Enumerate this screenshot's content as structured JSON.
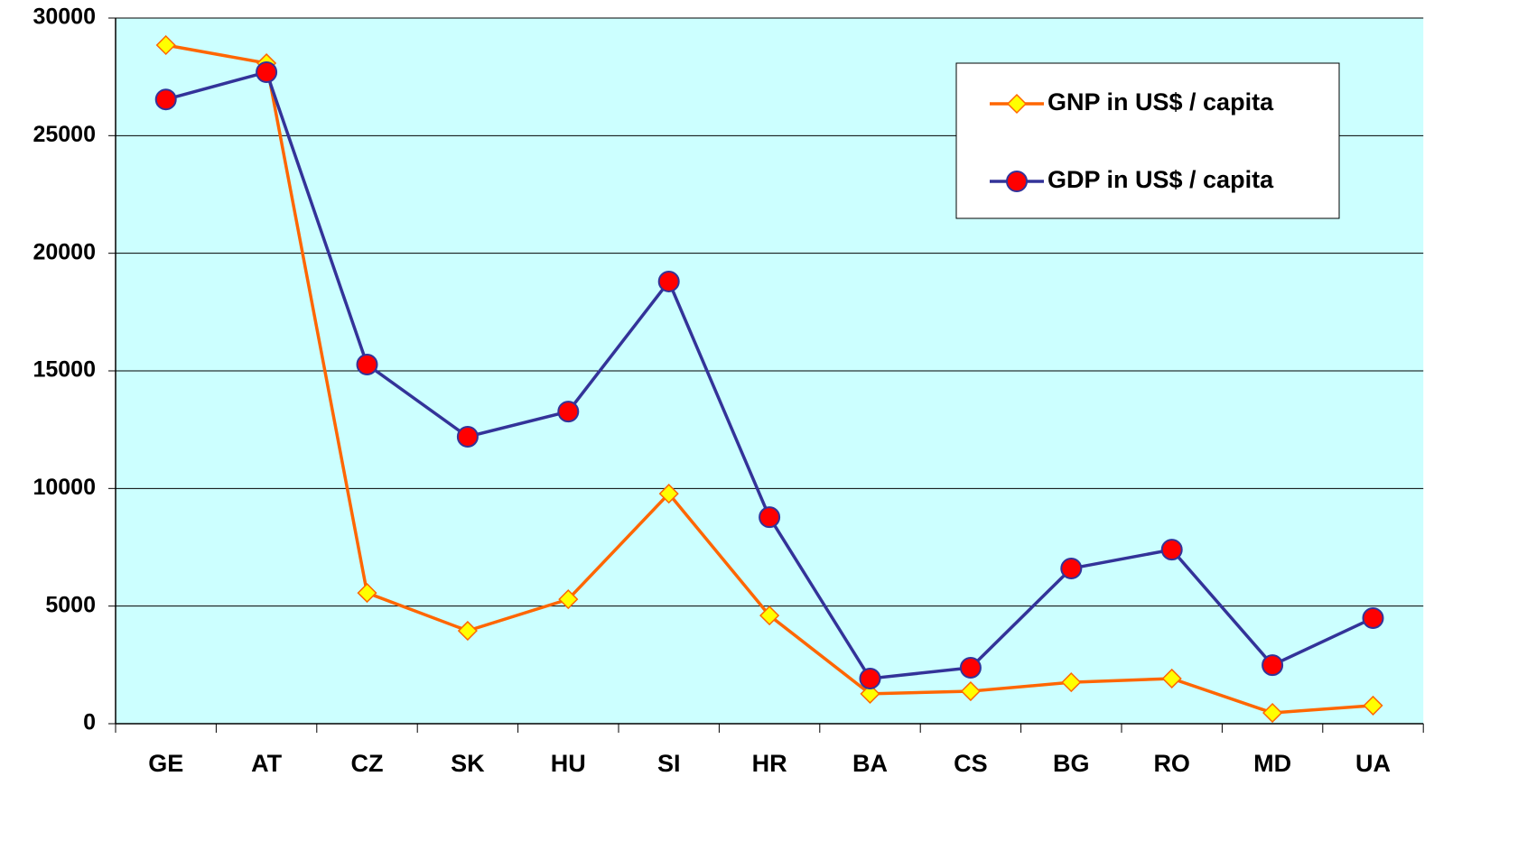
{
  "chart_data": {
    "type": "line",
    "categories": [
      "GE",
      "AT",
      "CZ",
      "SK",
      "HU",
      "SI",
      "HR",
      "BA",
      "CS",
      "BG",
      "RO",
      "MD",
      "UA"
    ],
    "series": [
      {
        "name": "GNP in US$ / capita",
        "color": "#ff6600",
        "marker": "diamond",
        "marker_color": "#ffff00",
        "values": [
          28850,
          28080,
          5560,
          3950,
          5290,
          9780,
          4600,
          1270,
          1380,
          1760,
          1920,
          460,
          770
        ]
      },
      {
        "name": "GDP in US$ / capita",
        "color": "#333399",
        "marker": "circle",
        "marker_color": "#ff0000",
        "values": [
          26540,
          27700,
          15270,
          12200,
          13270,
          18800,
          8780,
          1920,
          2380,
          6600,
          7400,
          2490,
          4490
        ]
      }
    ],
    "ylim": [
      0,
      30000
    ],
    "yticks": [
      0,
      5000,
      10000,
      15000,
      20000,
      25000,
      30000
    ],
    "grid": true,
    "legend": "upper right",
    "background": "#ccffff"
  }
}
